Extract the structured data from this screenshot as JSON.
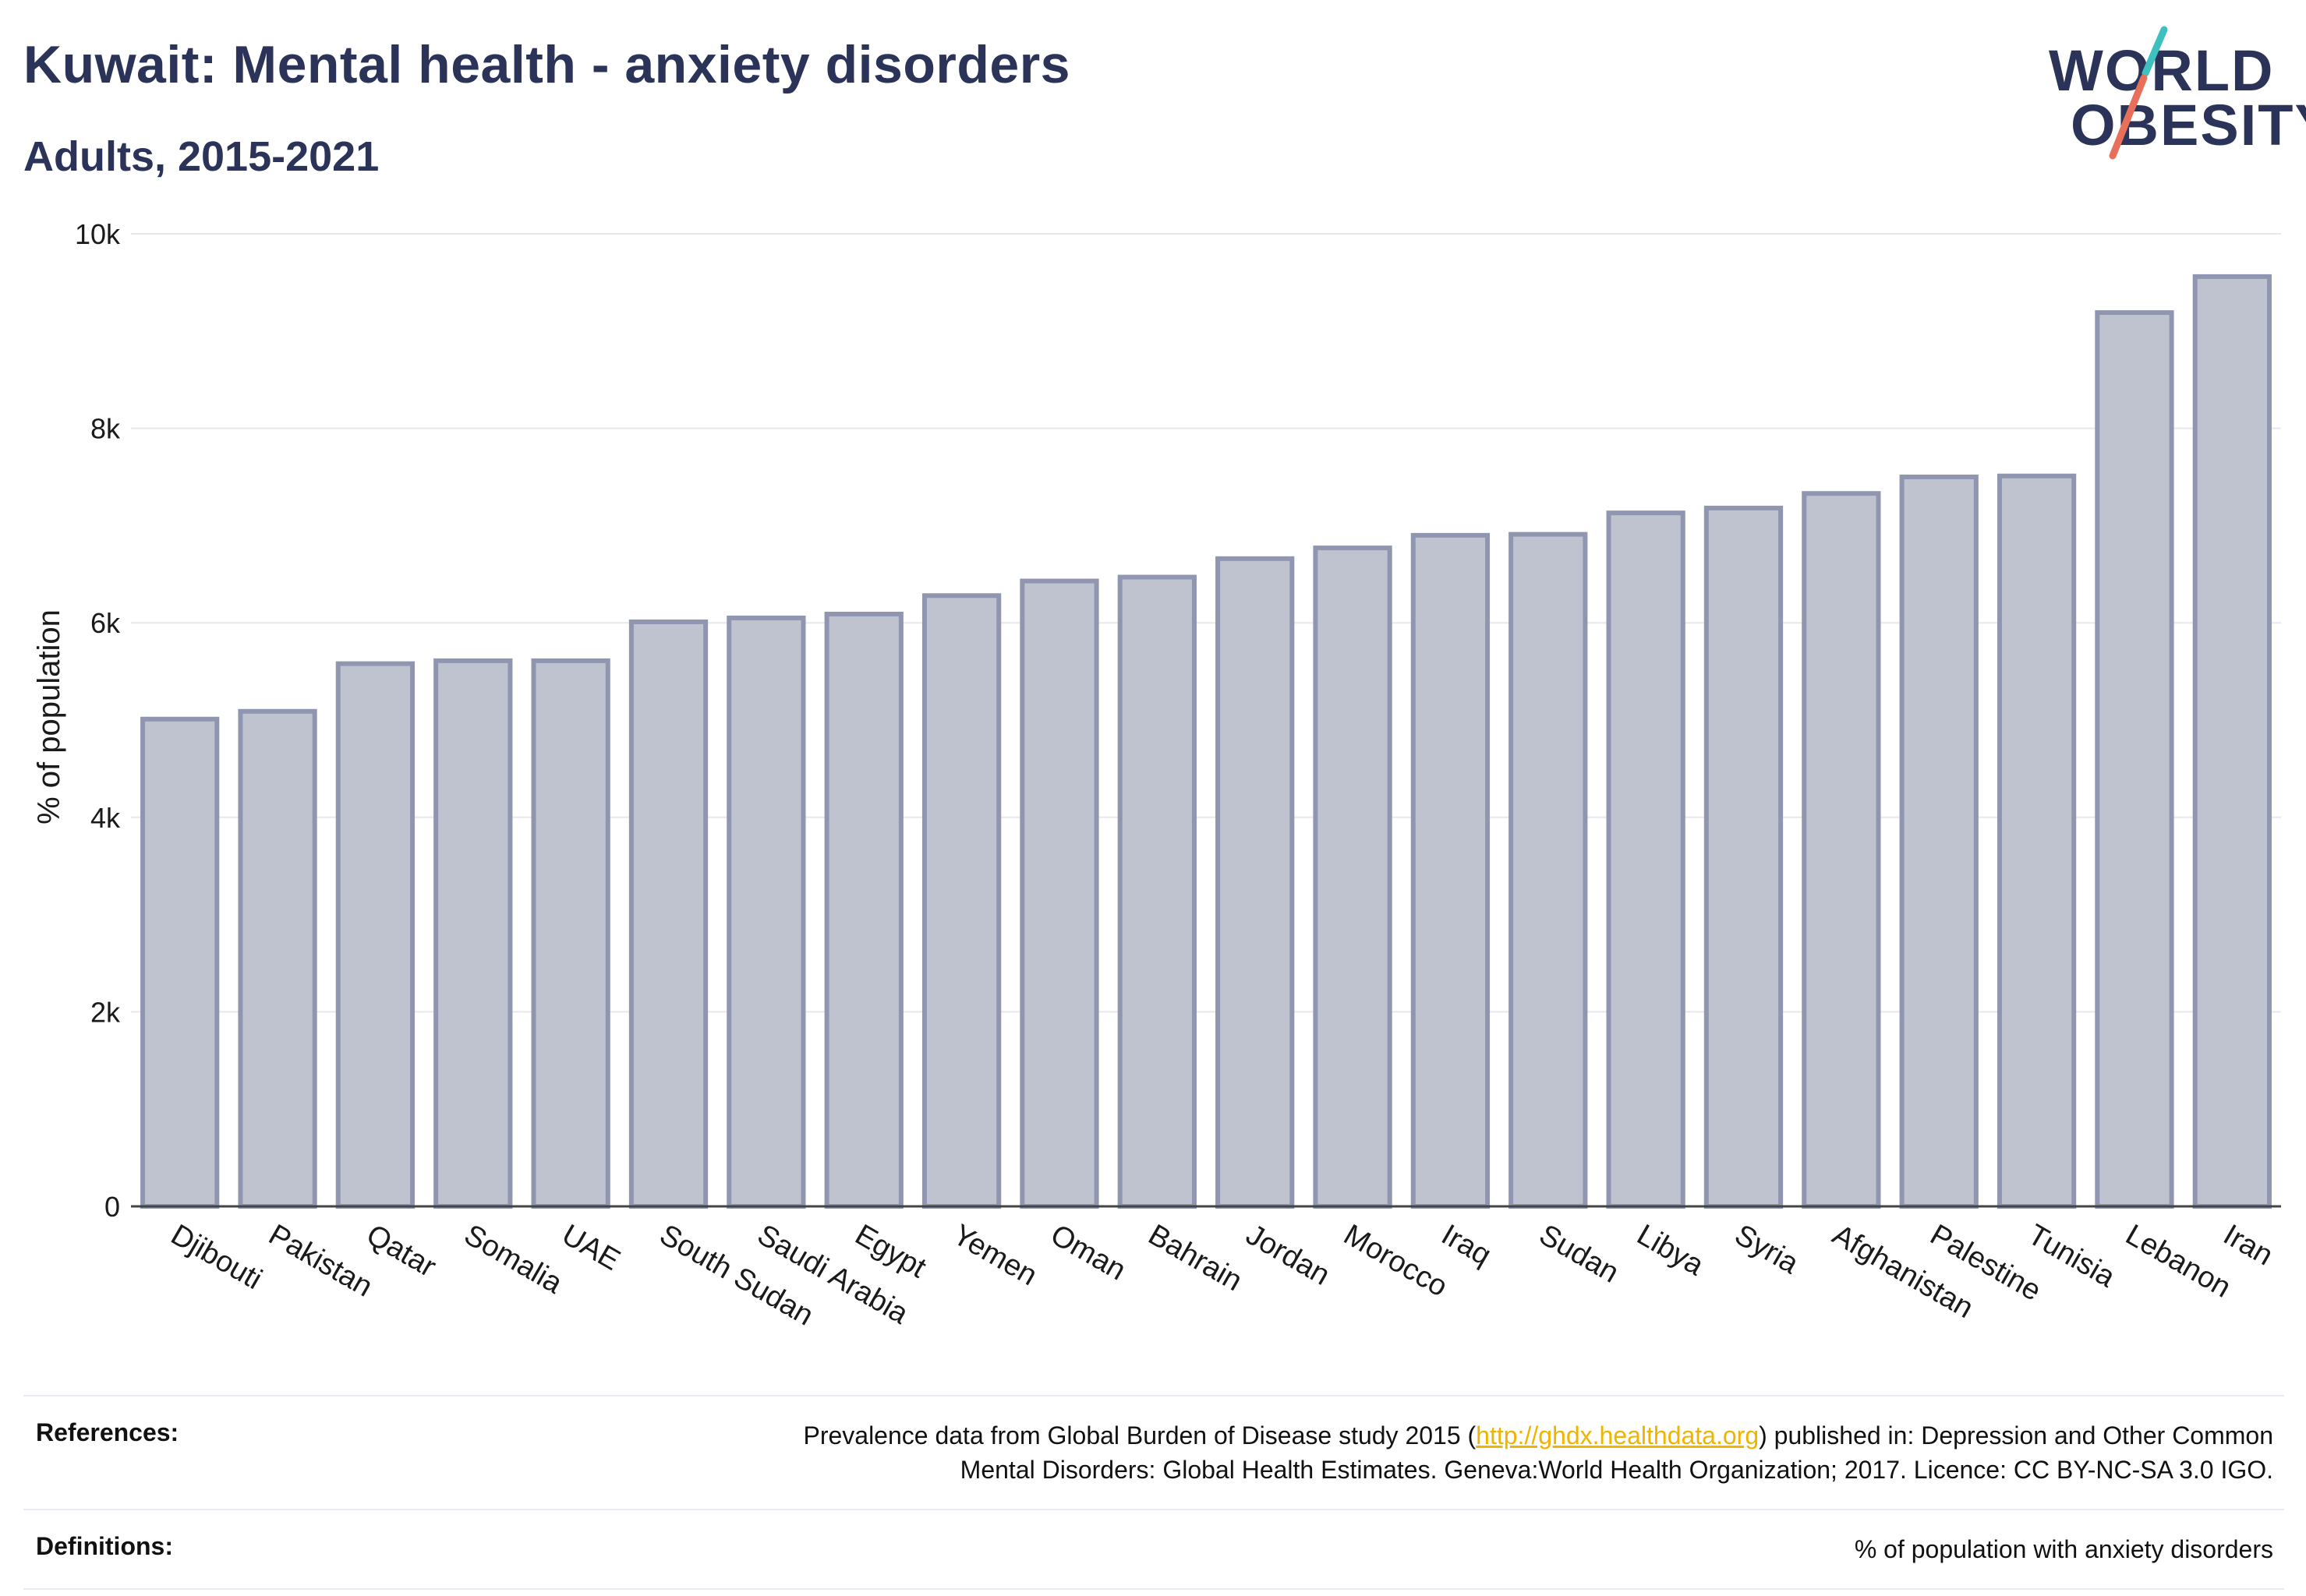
{
  "header": {
    "title": "Kuwait: Mental health - anxiety disorders",
    "subtitle": "Adults, 2015-2021"
  },
  "logo": {
    "line1": "WORLD",
    "line2": "OBESITY",
    "slash_colors": [
      "#3cc1c0",
      "#e8705a"
    ]
  },
  "chart_data": {
    "type": "bar",
    "title": "",
    "xlabel": "",
    "ylabel": "% of population",
    "ylim": [
      0,
      10000
    ],
    "yticks": [
      {
        "value": 0,
        "label": "0"
      },
      {
        "value": 2000,
        "label": "2k"
      },
      {
        "value": 4000,
        "label": "4k"
      },
      {
        "value": 6000,
        "label": "6k"
      },
      {
        "value": 8000,
        "label": "8k"
      },
      {
        "value": 10000,
        "label": "10k"
      }
    ],
    "grid": true,
    "bar_color": "#bfc3d0",
    "bar_edge_color": "#9096b0",
    "categories": [
      "Djibouti",
      "Pakistan",
      "Qatar",
      "Somalia",
      "UAE",
      "South Sudan",
      "Saudi Arabia",
      "Egypt",
      "Yemen",
      "Oman",
      "Bahrain",
      "Jordan",
      "Morocco",
      "Iraq",
      "Sudan",
      "Libya",
      "Syria",
      "Afghanistan",
      "Palestine",
      "Tunisia",
      "Lebanon",
      "Iran"
    ],
    "values": [
      5010,
      5090,
      5580,
      5610,
      5610,
      6010,
      6050,
      6090,
      6280,
      6430,
      6470,
      6660,
      6770,
      6900,
      6910,
      7130,
      7180,
      7330,
      7500,
      7510,
      9190,
      9560
    ]
  },
  "footer": {
    "references_label": "References:",
    "references_pre": "Prevalence data from Global Burden of Disease study 2015 (",
    "references_link": "http://ghdx.healthdata.org",
    "references_post": ") published in: Depression and Other Common",
    "references_line2": "Mental Disorders: Global Health Estimates. Geneva:World Health Organization; 2017. Licence: CC BY-NC-SA 3.0 IGO.",
    "definitions_label": "Definitions:",
    "definitions_text": "% of population with anxiety disorders"
  }
}
